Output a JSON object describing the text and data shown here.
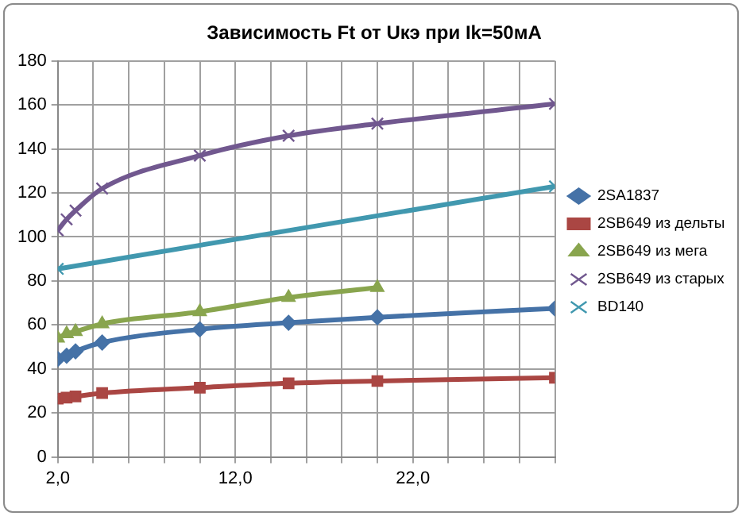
{
  "chart_data": {
    "type": "line",
    "title": "Зависимость Ft от Uкэ при Ik=50мА",
    "x": [
      2,
      2.5,
      3,
      4.5,
      10,
      15,
      20,
      30
    ],
    "xlim": [
      2,
      30
    ],
    "xticks": [
      {
        "value": 2,
        "label": "2,0"
      },
      {
        "value": 4,
        "label": null
      },
      {
        "value": 6,
        "label": null
      },
      {
        "value": 8,
        "label": null
      },
      {
        "value": 10,
        "label": null
      },
      {
        "value": 12,
        "label": "12,0"
      },
      {
        "value": 14,
        "label": null
      },
      {
        "value": 16,
        "label": null
      },
      {
        "value": 18,
        "label": null
      },
      {
        "value": 20,
        "label": null
      },
      {
        "value": 22,
        "label": "22,0"
      },
      {
        "value": 24,
        "label": null
      },
      {
        "value": 26,
        "label": null
      },
      {
        "value": 28,
        "label": null
      },
      {
        "value": 30,
        "label": null
      }
    ],
    "ylim": [
      0,
      180
    ],
    "yticks": [
      0,
      20,
      40,
      60,
      80,
      100,
      120,
      140,
      160,
      180
    ],
    "grid": true,
    "legend": "right",
    "series": [
      {
        "name": "2SA1837",
        "color": "#4572a7",
        "marker": "diamond",
        "values": [
          44.5,
          46,
          48,
          52,
          58,
          61,
          63.5,
          67.5
        ]
      },
      {
        "name": "2SB649 из дельты",
        "color": "#aa4643",
        "marker": "square",
        "values": [
          26.5,
          27,
          27.5,
          29,
          31.5,
          33.5,
          34.5,
          36
        ]
      },
      {
        "name": "2SB649 из мега",
        "color": "#89a54e",
        "marker": "triangle",
        "values": [
          54,
          56,
          57,
          60.5,
          66,
          72.5,
          77,
          null
        ]
      },
      {
        "name": "2SB649 из старых",
        "color": "#71588f",
        "marker": "cross",
        "values": [
          103,
          108,
          112,
          122,
          137,
          146,
          151.5,
          160.5
        ]
      },
      {
        "name": "BD140",
        "color": "#4198af",
        "marker": "cross",
        "x": [
          2,
          30
        ],
        "values": [
          85.5,
          123
        ]
      }
    ]
  }
}
